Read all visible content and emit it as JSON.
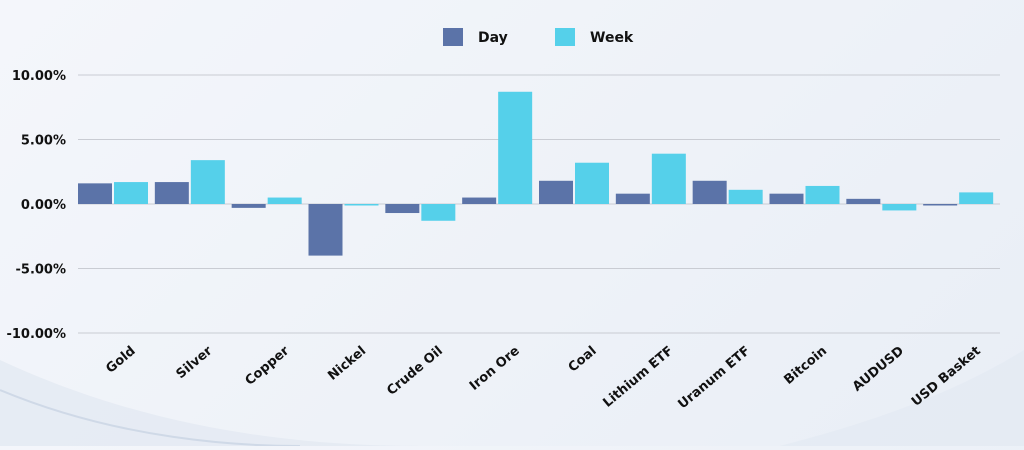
{
  "chart_data": {
    "type": "bar",
    "title": "",
    "xlabel": "",
    "ylabel": "",
    "categories": [
      "Gold",
      "Silver",
      "Copper",
      "Nickel",
      "Crude Oil",
      "Iron Ore",
      "Coal",
      "Lithium ETF",
      "Uranum ETF",
      "Bitcoin",
      "AUDUSD",
      "USD Basket"
    ],
    "series": [
      {
        "name": "Day",
        "color": "#5b73a8",
        "values": [
          1.6,
          1.7,
          -0.3,
          -4.0,
          -0.7,
          0.5,
          1.8,
          0.8,
          1.8,
          0.8,
          0.4,
          0.0
        ]
      },
      {
        "name": "Week",
        "color": "#55d0ea",
        "values": [
          1.7,
          3.4,
          0.5,
          -0.1,
          -1.3,
          8.7,
          3.2,
          3.9,
          1.1,
          1.4,
          -0.5,
          0.9
        ]
      }
    ],
    "ylim": [
      -10,
      10
    ],
    "yticks": [
      10,
      5,
      0,
      -5,
      -10
    ],
    "ytick_labels": [
      "10.00%",
      "5.00%",
      "0.00%",
      "-5.00%",
      "-10.00%"
    ],
    "grid": true,
    "legend_position": "top-center"
  }
}
